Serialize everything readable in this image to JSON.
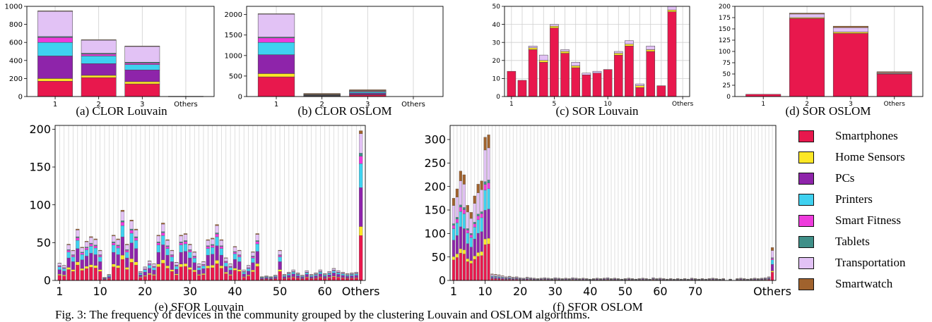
{
  "legend": {
    "items": [
      {
        "label": "Smartphones",
        "color": "#e8184d"
      },
      {
        "label": "Home Sensors",
        "color": "#fde725"
      },
      {
        "label": "PCs",
        "color": "#8e24aa"
      },
      {
        "label": "Printers",
        "color": "#3fd1f0"
      },
      {
        "label": "Smart Fitness",
        "color": "#ee3bdc"
      },
      {
        "label": "Tablets",
        "color": "#3f8f88"
      },
      {
        "label": "Transportation",
        "color": "#e2c2f5"
      },
      {
        "label": "Smartwatch",
        "color": "#a0622d"
      }
    ]
  },
  "figure_caption": "Fig. 3: The frequency of devices in the community grouped by the clustering Louvain and OSLOM algorithms.",
  "chart_data": [
    {
      "type": "bar",
      "stacked": true,
      "caption": "(a) CLOR Louvain",
      "categories": [
        "1",
        "2",
        "3",
        "Others"
      ],
      "ylim": [
        0,
        1000
      ],
      "yticks": [
        0,
        200,
        400,
        600,
        800,
        1000
      ],
      "grid": "x",
      "series": [
        {
          "name": "Smartphones",
          "values": [
            170,
            210,
            140,
            2
          ]
        },
        {
          "name": "Home Sensors",
          "values": [
            30,
            25,
            25,
            0
          ]
        },
        {
          "name": "PCs",
          "values": [
            250,
            130,
            130,
            0
          ]
        },
        {
          "name": "Printers",
          "values": [
            150,
            85,
            60,
            0
          ]
        },
        {
          "name": "Smart Fitness",
          "values": [
            55,
            20,
            15,
            0
          ]
        },
        {
          "name": "Tablets",
          "values": [
            10,
            10,
            10,
            0
          ]
        },
        {
          "name": "Transportation",
          "values": [
            280,
            145,
            175,
            1
          ]
        },
        {
          "name": "Smartwatch",
          "values": [
            5,
            5,
            5,
            0
          ]
        }
      ]
    },
    {
      "type": "bar",
      "stacked": true,
      "caption": "(b) CLOR OSLOM",
      "categories": [
        "1",
        "2",
        "3",
        "Others"
      ],
      "ylim": [
        0,
        2200
      ],
      "yticks": [
        0,
        500,
        1000,
        1500,
        2000
      ],
      "grid": "x",
      "series": [
        {
          "name": "Smartphones",
          "values": [
            480,
            10,
            40,
            0
          ]
        },
        {
          "name": "Home Sensors",
          "values": [
            80,
            5,
            10,
            0
          ]
        },
        {
          "name": "PCs",
          "values": [
            460,
            10,
            30,
            0
          ]
        },
        {
          "name": "Printers",
          "values": [
            300,
            10,
            30,
            0
          ]
        },
        {
          "name": "Smart Fitness",
          "values": [
            110,
            5,
            10,
            0
          ]
        },
        {
          "name": "Tablets",
          "values": [
            20,
            5,
            5,
            0
          ]
        },
        {
          "name": "Transportation",
          "values": [
            560,
            10,
            20,
            0
          ]
        },
        {
          "name": "Smartwatch",
          "values": [
            10,
            20,
            20,
            0
          ]
        }
      ]
    },
    {
      "type": "bar",
      "stacked": true,
      "caption": "(c) SOR Louvain",
      "categories": [
        "1",
        "2",
        "3",
        "4",
        "5",
        "6",
        "7",
        "8",
        "9",
        "10",
        "11",
        "12",
        "13",
        "14",
        "15",
        "16",
        "Others"
      ],
      "xtick_labels": [
        "1",
        "5",
        "10",
        "Others"
      ],
      "ylim": [
        0,
        50
      ],
      "yticks": [
        0,
        10,
        20,
        30,
        40,
        50
      ],
      "grid": "both",
      "series": [
        {
          "name": "Smartphones",
          "values": [
            14,
            9,
            26,
            19,
            38,
            24,
            16,
            12,
            13,
            15,
            23,
            28,
            5,
            25,
            6,
            47,
            0
          ]
        },
        {
          "name": "Home Sensors",
          "values": [
            0,
            0,
            1,
            1,
            1,
            1,
            1,
            0,
            0,
            0,
            1,
            1,
            1,
            1,
            0,
            1,
            0
          ]
        },
        {
          "name": "Transportation",
          "values": [
            0,
            0,
            1,
            3,
            1,
            1,
            2,
            1,
            1,
            0,
            1,
            2,
            1,
            2,
            0,
            2,
            0
          ]
        }
      ]
    },
    {
      "type": "bar",
      "stacked": true,
      "caption": "(d) SOR OSLOM",
      "categories": [
        "1",
        "2",
        "3",
        "Others"
      ],
      "ylim": [
        0,
        200
      ],
      "yticks": [
        0,
        25,
        50,
        75,
        100,
        125,
        150,
        175,
        200
      ],
      "grid": "x",
      "series": [
        {
          "name": "Smartphones",
          "values": [
            5,
            173,
            140,
            50
          ]
        },
        {
          "name": "Home Sensors",
          "values": [
            0,
            2,
            3,
            1
          ]
        },
        {
          "name": "Transportation",
          "values": [
            0,
            8,
            10,
            2
          ]
        },
        {
          "name": "Smartwatch",
          "values": [
            0,
            2,
            3,
            2
          ]
        }
      ]
    },
    {
      "type": "bar",
      "stacked": true,
      "caption": "(e) SFOR Louvain",
      "xtick_labels": [
        "1",
        "10",
        "20",
        "30",
        "40",
        "50",
        "60",
        "Others"
      ],
      "ylim": [
        0,
        205
      ],
      "yticks": [
        0,
        50,
        100,
        150,
        200
      ],
      "grid": "x",
      "totals": [
        23,
        20,
        48,
        40,
        68,
        44,
        52,
        58,
        55,
        40,
        4,
        8,
        60,
        55,
        93,
        48,
        80,
        68,
        12,
        18,
        26,
        22,
        60,
        76,
        54,
        40,
        24,
        60,
        62,
        48,
        38,
        22,
        25,
        54,
        56,
        74,
        54,
        30,
        22,
        45,
        40,
        14,
        20,
        38,
        62,
        5,
        6,
        5,
        7,
        40,
        8,
        11,
        14,
        10,
        7,
        13,
        8,
        10,
        14,
        9,
        12,
        16,
        13,
        11,
        9,
        10,
        11,
        198
      ],
      "composition": {
        "Smartphones": 0.3,
        "Home Sensors": 0.06,
        "PCs": 0.26,
        "Printers": 0.16,
        "Smart Fitness": 0.05,
        "Tablets": 0.02,
        "Transportation": 0.13,
        "Smartwatch": 0.02
      }
    },
    {
      "type": "bar",
      "stacked": true,
      "caption": "(f) SFOR OSLOM",
      "xtick_labels": [
        "1",
        "10",
        "20",
        "30",
        "40",
        "50",
        "60",
        "70",
        "Others"
      ],
      "ylim": [
        0,
        330
      ],
      "yticks": [
        0,
        50,
        100,
        150,
        200,
        250,
        300
      ],
      "grid": "x",
      "totals": [
        175,
        195,
        233,
        225,
        160,
        145,
        180,
        205,
        212,
        305,
        310,
        14,
        13,
        12,
        10,
        8,
        9,
        7,
        8,
        6,
        5,
        7,
        6,
        5,
        4,
        5,
        6,
        5,
        4,
        6,
        5,
        4,
        5,
        4,
        6,
        5,
        4,
        5,
        4,
        3,
        4,
        5,
        4,
        5,
        6,
        4,
        5,
        4,
        3,
        4,
        5,
        4,
        3,
        4,
        5,
        4,
        3,
        6,
        4,
        5,
        4,
        3,
        4,
        3,
        4,
        3,
        4,
        3,
        5,
        4,
        3,
        4,
        3,
        4,
        5,
        4,
        3,
        4,
        0,
        3,
        0,
        4,
        5,
        4,
        3,
        4,
        5,
        4,
        5,
        6,
        8,
        70
      ],
      "composition": {
        "Smartphones": 0.25,
        "Home Sensors": 0.04,
        "PCs": 0.2,
        "Printers": 0.14,
        "Smart Fitness": 0.04,
        "Tablets": 0.02,
        "Transportation": 0.22,
        "Smartwatch": 0.09
      }
    }
  ]
}
